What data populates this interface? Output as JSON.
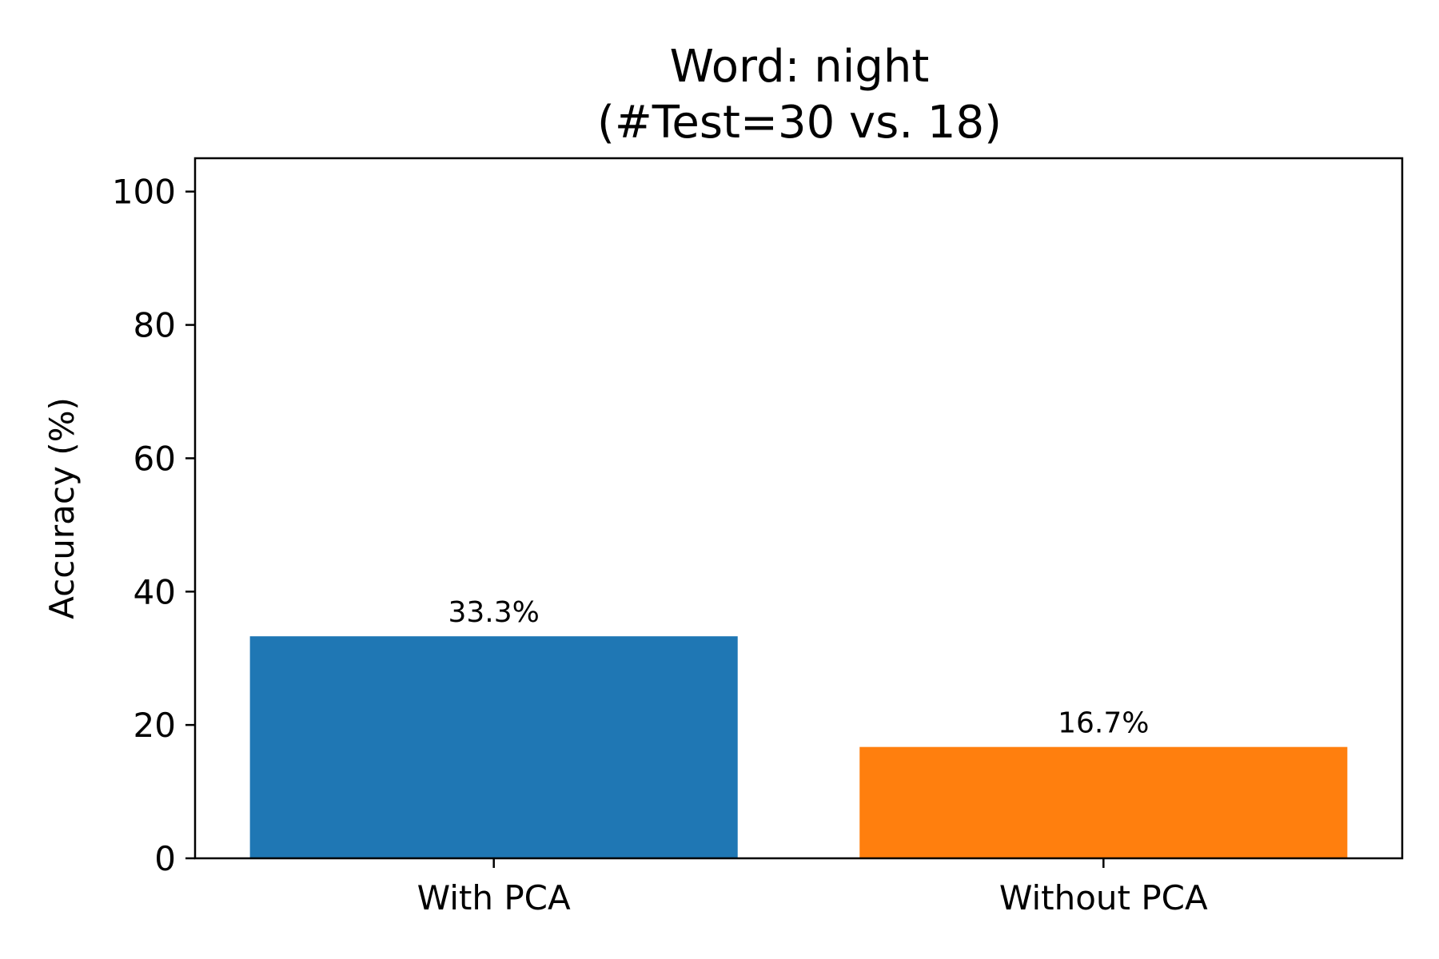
{
  "chart_data": {
    "type": "bar",
    "title_line1": "Word: night",
    "title_line2": "(#Test=30 vs. 18)",
    "xlabel": "",
    "ylabel": "Accuracy (%)",
    "categories": [
      "With PCA",
      "Without PCA"
    ],
    "values": [
      33.3,
      16.7
    ],
    "data_labels": [
      "33.3%",
      "16.7%"
    ],
    "colors": [
      "#1f77b4",
      "#ff7f0e"
    ],
    "ylim": [
      0,
      105
    ],
    "yticks": [
      0,
      20,
      40,
      60,
      80,
      100
    ],
    "grid": false,
    "legend": "none"
  }
}
